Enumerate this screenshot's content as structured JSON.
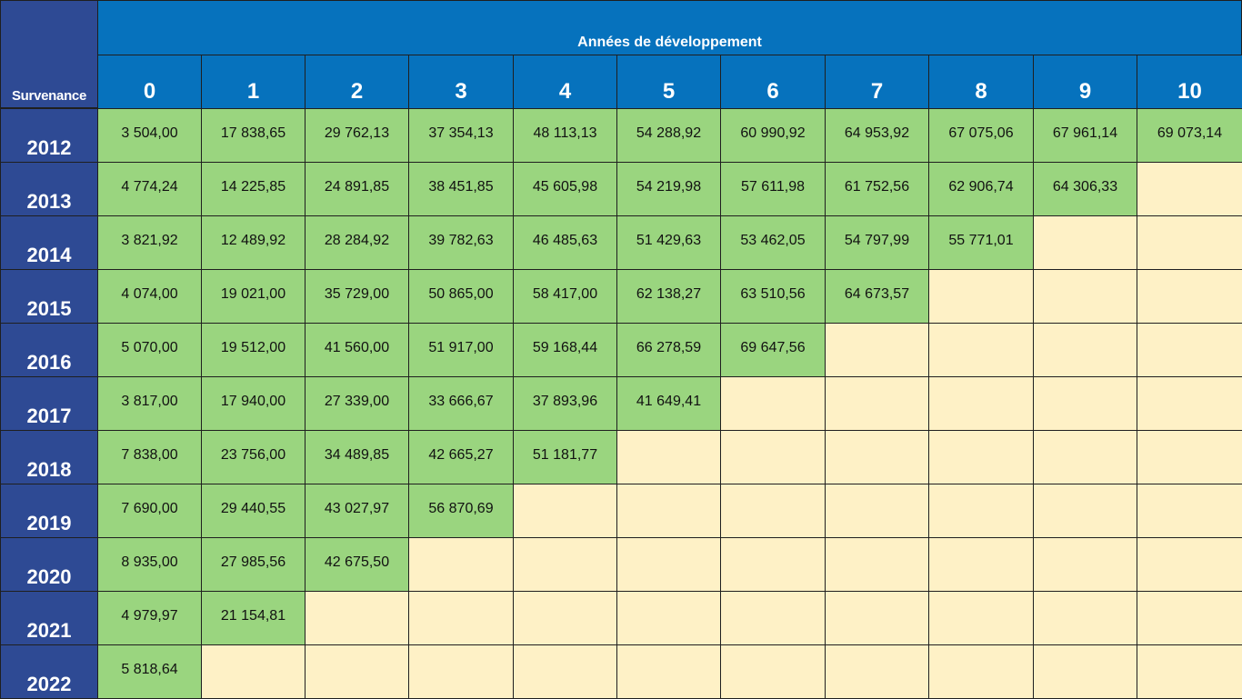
{
  "chart_data": {
    "type": "table",
    "title": "Années de développement",
    "row_header_label": "Survenance",
    "columns": [
      "0",
      "1",
      "2",
      "3",
      "4",
      "5",
      "6",
      "7",
      "8",
      "9",
      "10"
    ],
    "rows": [
      {
        "year": "2012",
        "values": [
          "3 504,00",
          "17 838,65",
          "29 762,13",
          "37 354,13",
          "48 113,13",
          "54 288,92",
          "60 990,92",
          "64 953,92",
          "67 075,06",
          "67 961,14",
          "69 073,14"
        ]
      },
      {
        "year": "2013",
        "values": [
          "4 774,24",
          "14 225,85",
          "24 891,85",
          "38 451,85",
          "45 605,98",
          "54 219,98",
          "57 611,98",
          "61 752,56",
          "62 906,74",
          "64 306,33"
        ]
      },
      {
        "year": "2014",
        "values": [
          "3 821,92",
          "12 489,92",
          "28 284,92",
          "39 782,63",
          "46 485,63",
          "51 429,63",
          "53 462,05",
          "54 797,99",
          "55 771,01"
        ]
      },
      {
        "year": "2015",
        "values": [
          "4 074,00",
          "19 021,00",
          "35 729,00",
          "50 865,00",
          "58 417,00",
          "62 138,27",
          "63 510,56",
          "64 673,57"
        ]
      },
      {
        "year": "2016",
        "values": [
          "5 070,00",
          "19 512,00",
          "41 560,00",
          "51 917,00",
          "59 168,44",
          "66 278,59",
          "69 647,56"
        ]
      },
      {
        "year": "2017",
        "values": [
          "3 817,00",
          "17 940,00",
          "27 339,00",
          "33 666,67",
          "37 893,96",
          "41 649,41"
        ]
      },
      {
        "year": "2018",
        "values": [
          "7 838,00",
          "23 756,00",
          "34 489,85",
          "42 665,27",
          "51 181,77"
        ]
      },
      {
        "year": "2019",
        "values": [
          "7 690,00",
          "29 440,55",
          "43 027,97",
          "56 870,69"
        ]
      },
      {
        "year": "2020",
        "values": [
          "8 935,00",
          "27 985,56",
          "42 675,50"
        ]
      },
      {
        "year": "2021",
        "values": [
          "4 979,97",
          "21 154,81"
        ]
      },
      {
        "year": "2022",
        "values": [
          "5 818,64"
        ]
      }
    ]
  },
  "colors": {
    "header_blue": "#0672bd",
    "row_header_navy": "#2e4a94",
    "value_green": "#9ad57f",
    "empty_cream": "#fef1c6",
    "grid_line": "#1f1f1f"
  }
}
